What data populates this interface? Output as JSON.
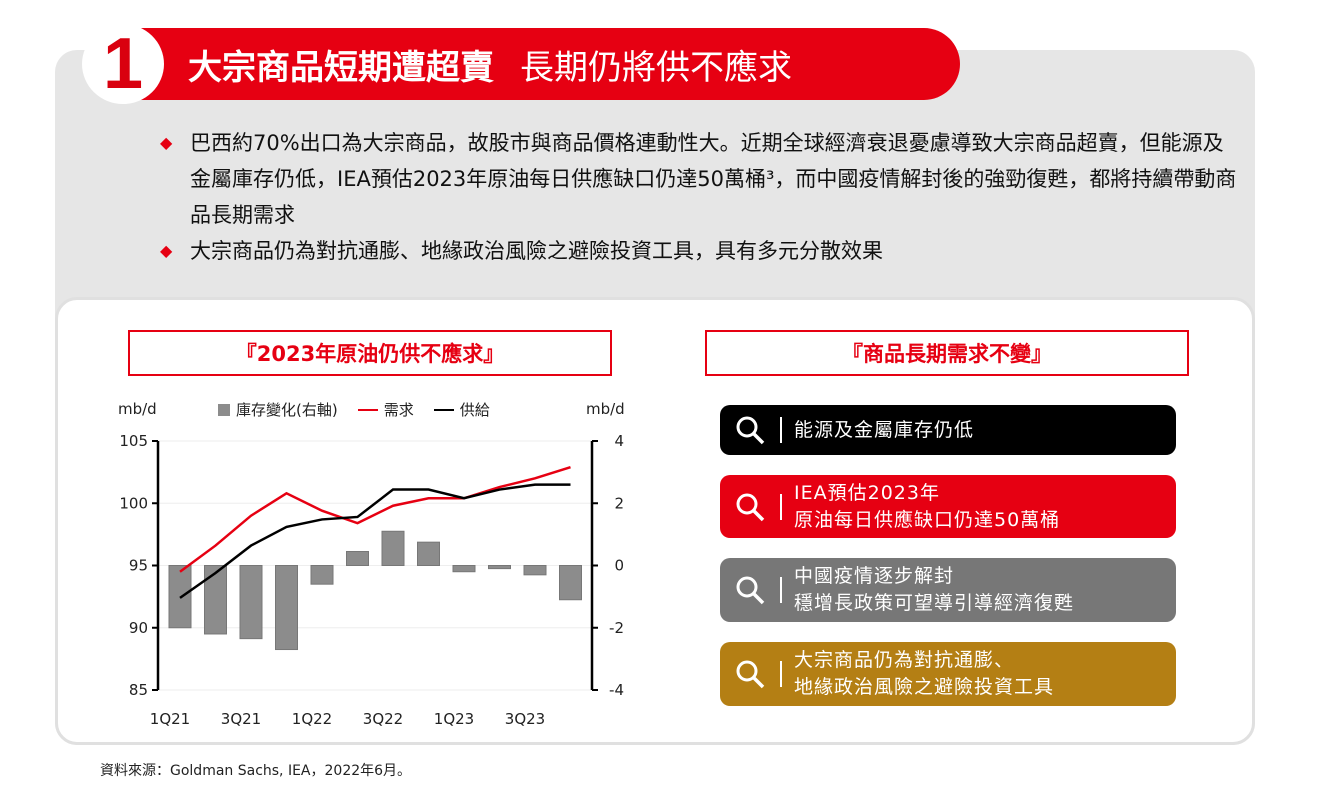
{
  "header": {
    "number": "1",
    "title": "大宗商品短期遭超賣",
    "subtitle": "長期仍將供不應求"
  },
  "bullets": [
    "巴西約70%出口為大宗商品，故股市與商品價格連動性大。近期全球經濟衰退憂慮導致大宗商品超賣，但能源及金屬庫存仍低，IEA預估2023年原油每日供應缺口仍達50萬桶³，而中國疫情解封後的強勁復甦，都將持續帶動商品長期需求",
    "大宗商品仍為對抗通膨、地緣政治風險之避險投資工具，具有多元分散效果"
  ],
  "right": {
    "title": "『商品長期需求不變』",
    "items": [
      {
        "line1": "能源及金屬庫存仍低",
        "line2": "",
        "color": "#000000"
      },
      {
        "line1": "IEA預估2023年",
        "line2": "原油每日供應缺口仍達50萬桶",
        "color": "#e60012"
      },
      {
        "line1": "中國疫情逐步解封",
        "line2": "穩增長政策可望導引導經濟復甦",
        "color": "#777777"
      },
      {
        "line1": "大宗商品仍為對抗通膨、",
        "line2": "地緣政治風險之避險投資工具",
        "color": "#b47f14"
      }
    ]
  },
  "source": "資料來源：Goldman Sachs, IEA，2022年6月。",
  "chart_data": {
    "type": "bar+line",
    "title": "『2023年原油仍供不應求』",
    "ylabel_left": "mb/d",
    "ylabel_right": "mb/d",
    "ylim_left": [
      85,
      105
    ],
    "yticks_left": [
      "105",
      "100",
      "95",
      "90",
      "85"
    ],
    "ylim_right": [
      -4,
      4
    ],
    "yticks_right": [
      "4",
      "2",
      "0",
      "-2",
      "-4"
    ],
    "categories": [
      "1Q21",
      "2Q21",
      "3Q21",
      "4Q21",
      "1Q22",
      "2Q22",
      "3Q22",
      "4Q22",
      "1Q23",
      "2Q23",
      "3Q23",
      "4Q23"
    ],
    "xtick_labels": [
      "1Q21",
      "3Q21",
      "1Q22",
      "3Q22",
      "1Q23",
      "3Q23"
    ],
    "legend_position": "top",
    "series": [
      {
        "name": "庫存變化(右軸)",
        "type": "bar",
        "axis": "right",
        "color": "#8c8c8c",
        "values": [
          -2.0,
          -2.2,
          -2.35,
          -2.7,
          -0.6,
          0.45,
          1.1,
          0.75,
          -0.2,
          -0.1,
          -0.3,
          -1.1
        ]
      },
      {
        "name": "需求",
        "type": "line",
        "axis": "left",
        "color": "#e60012",
        "values": [
          94.5,
          96.6,
          99.0,
          100.8,
          99.4,
          98.4,
          99.8,
          100.4,
          100.4,
          101.3,
          102.0,
          102.9
        ]
      },
      {
        "name": "供給",
        "type": "line",
        "axis": "left",
        "color": "#000000",
        "values": [
          92.4,
          94.4,
          96.6,
          98.1,
          98.7,
          98.9,
          101.1,
          101.1,
          100.4,
          101.1,
          101.5,
          101.5
        ]
      }
    ]
  }
}
